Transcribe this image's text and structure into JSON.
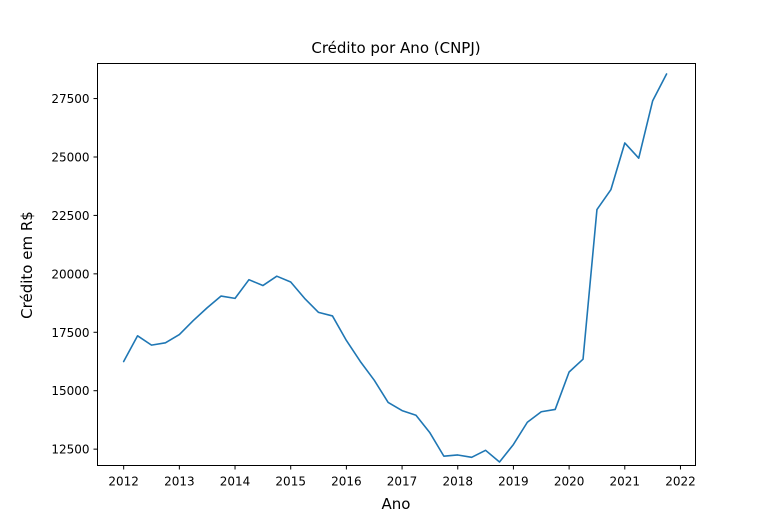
{
  "chart_data": {
    "type": "line",
    "title": "Crédito por Ano (CNPJ)",
    "xlabel": "Ano",
    "ylabel": "Crédito em R$",
    "xlim": [
      2011.53,
      2022.27
    ],
    "ylim": [
      11800,
      29000
    ],
    "x_ticks": [
      2012,
      2013,
      2014,
      2015,
      2016,
      2017,
      2018,
      2019,
      2020,
      2021,
      2022
    ],
    "x_tick_labels": [
      "2012",
      "2013",
      "2014",
      "2015",
      "2016",
      "2017",
      "2018",
      "2019",
      "2020",
      "2021",
      "2022"
    ],
    "y_ticks": [
      12500,
      15000,
      17500,
      20000,
      22500,
      25000,
      27500
    ],
    "y_tick_labels": [
      "12500",
      "15000",
      "17500",
      "20000",
      "22500",
      "25000",
      "27500"
    ],
    "grid": false,
    "legend": null,
    "series": [
      {
        "color": "#1f77b4",
        "x": [
          2012.0,
          2012.25,
          2012.5,
          2012.75,
          2013.0,
          2013.25,
          2013.5,
          2013.75,
          2014.0,
          2014.25,
          2014.5,
          2014.75,
          2015.0,
          2015.25,
          2015.5,
          2015.75,
          2016.0,
          2016.25,
          2016.5,
          2016.75,
          2017.0,
          2017.25,
          2017.5,
          2017.75,
          2018.0,
          2018.25,
          2018.5,
          2018.75,
          2019.0,
          2019.25,
          2019.5,
          2019.75,
          2020.0,
          2020.25,
          2020.5,
          2020.75,
          2021.0,
          2021.25,
          2021.5,
          2021.75
        ],
        "y": [
          16250,
          17350,
          16950,
          17050,
          17400,
          18000,
          18550,
          19050,
          18950,
          19750,
          19500,
          19900,
          19650,
          18950,
          18350,
          18200,
          17150,
          16250,
          15450,
          14500,
          14150,
          13950,
          13200,
          12200,
          12250,
          12150,
          12450,
          11950,
          12700,
          13650,
          14100,
          14200,
          15800,
          16350,
          22750,
          23600,
          25600,
          24950,
          27400,
          28550
        ]
      }
    ]
  }
}
